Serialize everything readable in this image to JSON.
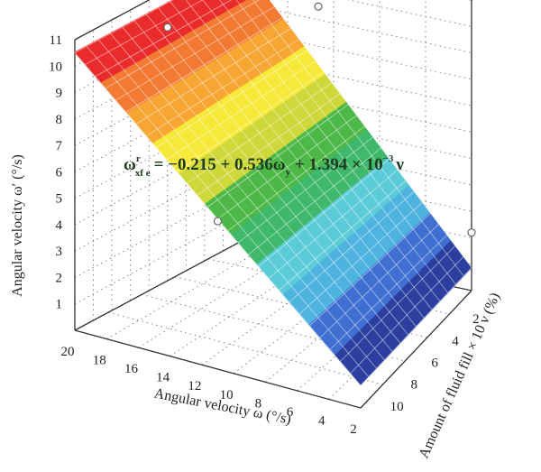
{
  "chart_data": {
    "type": "surface3d",
    "title": "",
    "zlabel": "Angular velocity ω′ (°/s)",
    "xlabel": "Angular velocity ω (°/s)",
    "ylabel": "Amount of fluid fill × 10 ν (%)",
    "equation": {
      "lhs": "ω",
      "lhs_sup": "r",
      "lhs_sub": "xf e",
      "rhs_main": "= −0.215 + 0.536ω",
      "rhs_sub": "y",
      "rhs_mid": " + 1.394 × 10",
      "rhs_exp": "−3",
      "rhs_end": "ν"
    },
    "zlim": [
      0,
      11
    ],
    "z_ticks": [
      "1",
      "2",
      "3",
      "4",
      "5",
      "6",
      "7",
      "8",
      "9",
      "10",
      "11"
    ],
    "xlim": [
      2,
      20
    ],
    "x_ticks": [
      "20",
      "18",
      "16",
      "14",
      "12",
      "10",
      "8",
      "6",
      "4",
      "2"
    ],
    "ylim": [
      1,
      10
    ],
    "y_ticks": [
      "2",
      "4",
      "6",
      "8",
      "10"
    ],
    "surface": {
      "intercept": -0.215,
      "coef_omega": 0.536,
      "coef_nu": 0.001394,
      "corner_values": [
        {
          "omega": 20,
          "nu": 1,
          "omega_prime": 10.5
        },
        {
          "omega": 20,
          "nu": 10,
          "omega_prime": 10.5
        },
        {
          "omega": 2,
          "nu": 1,
          "omega_prime": 0.9
        },
        {
          "omega": 2,
          "nu": 10,
          "omega_prime": 0.9
        }
      ]
    },
    "colormap": [
      "#2c3f9e",
      "#3f6fd0",
      "#4fb3e0",
      "#5ccbd8",
      "#3fb86b",
      "#4db848",
      "#cfd83a",
      "#f7e93a",
      "#f7a533",
      "#f27a33",
      "#ea2b2b"
    ],
    "grid": true
  }
}
